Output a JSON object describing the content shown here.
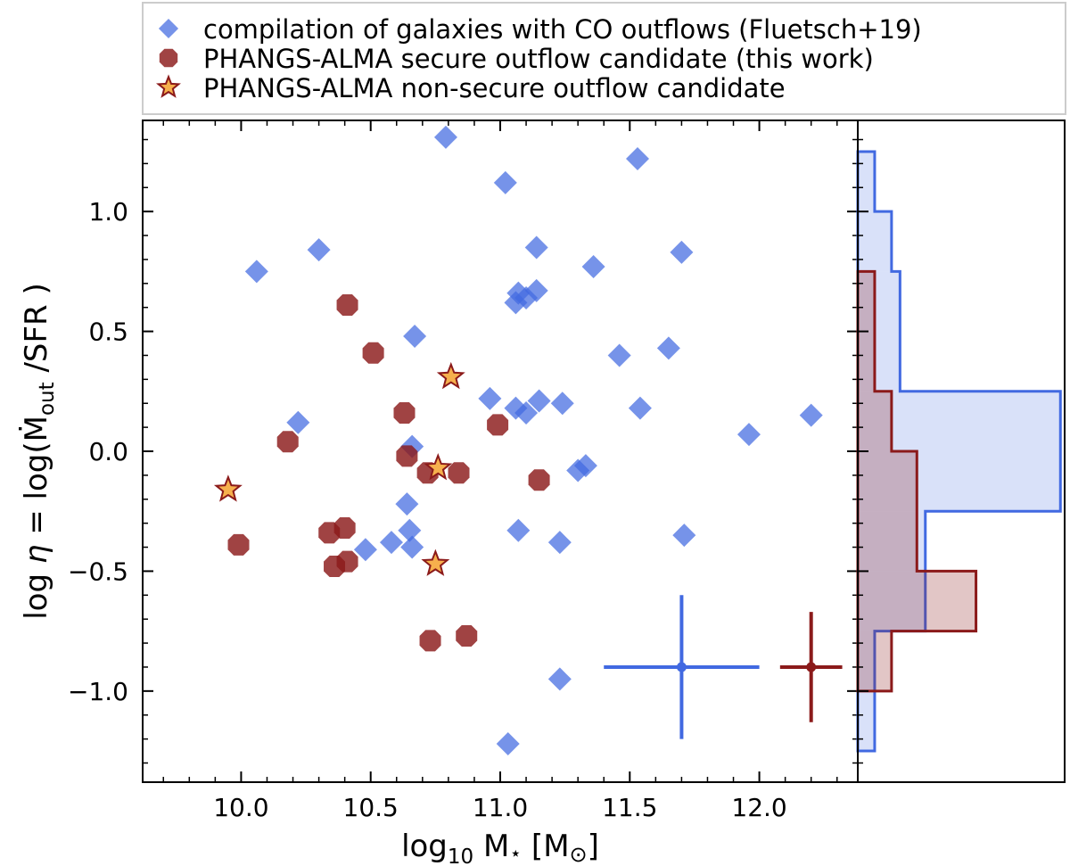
{
  "chart_data": {
    "type": "scatter",
    "xlabel_parts": {
      "log": "log",
      "sub": "10",
      "rest": " M",
      "star": "⋆",
      "bracket_open": " [M",
      "sun": "⊙",
      "bracket_close": "]"
    },
    "ylabel_parts": {
      "pre": "log ",
      "eta": "η",
      "mid": " = log(",
      "mdot": "Ṁ",
      "sub": "out",
      "post": " /SFR )"
    },
    "xlim": [
      9.62,
      12.38
    ],
    "ylim": [
      -1.38,
      1.38
    ],
    "xticks": [
      10.0,
      10.5,
      11.0,
      11.5,
      12.0
    ],
    "xtick_labels": [
      "10.0",
      "10.5",
      "11.0",
      "11.5",
      "12.0"
    ],
    "yticks": [
      -1.0,
      -0.5,
      0.0,
      0.5,
      1.0
    ],
    "ytick_labels": [
      "−1.0",
      "−0.5",
      "0.0",
      "0.5",
      "1.0"
    ],
    "colors": {
      "blue": "#4169e1",
      "red": "#8b1a1a",
      "star_fill": "#f6b04d"
    },
    "legend": [
      {
        "label": "compilation of galaxies with CO outflows (Fluetsch+19)",
        "marker": "diamond"
      },
      {
        "label": "PHANGS-ALMA secure outflow candidate (this work)",
        "marker": "octagon"
      },
      {
        "label": "PHANGS-ALMA non-secure outflow candidate",
        "marker": "star"
      }
    ],
    "series": [
      {
        "name": "compilation of galaxies with CO outflows (Fluetsch+19)",
        "marker": "diamond",
        "points": [
          [
            10.79,
            1.31
          ],
          [
            11.53,
            1.22
          ],
          [
            11.02,
            1.12
          ],
          [
            10.06,
            0.75
          ],
          [
            10.3,
            0.84
          ],
          [
            11.14,
            0.85
          ],
          [
            11.7,
            0.83
          ],
          [
            11.36,
            0.77
          ],
          [
            11.06,
            0.62
          ],
          [
            11.07,
            0.66
          ],
          [
            11.1,
            0.64
          ],
          [
            11.14,
            0.67
          ],
          [
            10.67,
            0.48
          ],
          [
            11.65,
            0.43
          ],
          [
            11.46,
            0.4
          ],
          [
            10.96,
            0.22
          ],
          [
            11.06,
            0.18
          ],
          [
            11.1,
            0.16
          ],
          [
            11.15,
            0.21
          ],
          [
            11.24,
            0.2
          ],
          [
            11.54,
            0.18
          ],
          [
            10.22,
            0.12
          ],
          [
            12.2,
            0.15
          ],
          [
            11.96,
            0.07
          ],
          [
            10.66,
            0.02
          ],
          [
            11.3,
            -0.08
          ],
          [
            11.33,
            -0.06
          ],
          [
            10.64,
            -0.22
          ],
          [
            10.65,
            -0.33
          ],
          [
            10.58,
            -0.38
          ],
          [
            10.66,
            -0.4
          ],
          [
            10.48,
            -0.41
          ],
          [
            11.07,
            -0.33
          ],
          [
            11.23,
            -0.38
          ],
          [
            11.71,
            -0.35
          ],
          [
            11.23,
            -0.95
          ],
          [
            11.03,
            -1.22
          ]
        ]
      },
      {
        "name": "PHANGS-ALMA secure outflow candidate (this work)",
        "marker": "octagon",
        "points": [
          [
            10.41,
            0.61
          ],
          [
            10.51,
            0.41
          ],
          [
            10.63,
            0.16
          ],
          [
            10.99,
            0.11
          ],
          [
            10.18,
            0.04
          ],
          [
            10.64,
            -0.02
          ],
          [
            10.72,
            -0.09
          ],
          [
            10.84,
            -0.09
          ],
          [
            11.15,
            -0.12
          ],
          [
            9.99,
            -0.39
          ],
          [
            10.34,
            -0.34
          ],
          [
            10.4,
            -0.32
          ],
          [
            10.36,
            -0.48
          ],
          [
            10.41,
            -0.46
          ],
          [
            10.73,
            -0.79
          ],
          [
            10.87,
            -0.77
          ]
        ]
      },
      {
        "name": "PHANGS-ALMA non-secure outflow candidate",
        "marker": "star",
        "points": [
          [
            10.81,
            0.31
          ],
          [
            9.95,
            -0.16
          ],
          [
            10.76,
            -0.07
          ],
          [
            10.75,
            -0.47
          ]
        ]
      }
    ],
    "error_bars": [
      {
        "color": "blue",
        "x": 11.7,
        "y": -0.9,
        "xerr": 0.3,
        "yerr": 0.3
      },
      {
        "color": "red",
        "x": 12.2,
        "y": -0.9,
        "xerr": 0.12,
        "yerr": 0.23
      }
    ],
    "histograms": {
      "orientation": "horizontal",
      "x_max": 0.245,
      "blue": {
        "edges": [
          -1.25,
          -0.75,
          -0.25,
          0.25,
          0.75,
          1.0,
          1.25
        ],
        "values": [
          0.02,
          0.08,
          0.24,
          0.05,
          0.04,
          0.02
        ]
      },
      "red": {
        "edges": [
          -1.0,
          -0.75,
          -0.5,
          0.0,
          0.25,
          0.5,
          0.75
        ],
        "values": [
          0.04,
          0.14,
          0.07,
          0.04,
          0.02,
          0.02
        ]
      }
    }
  }
}
